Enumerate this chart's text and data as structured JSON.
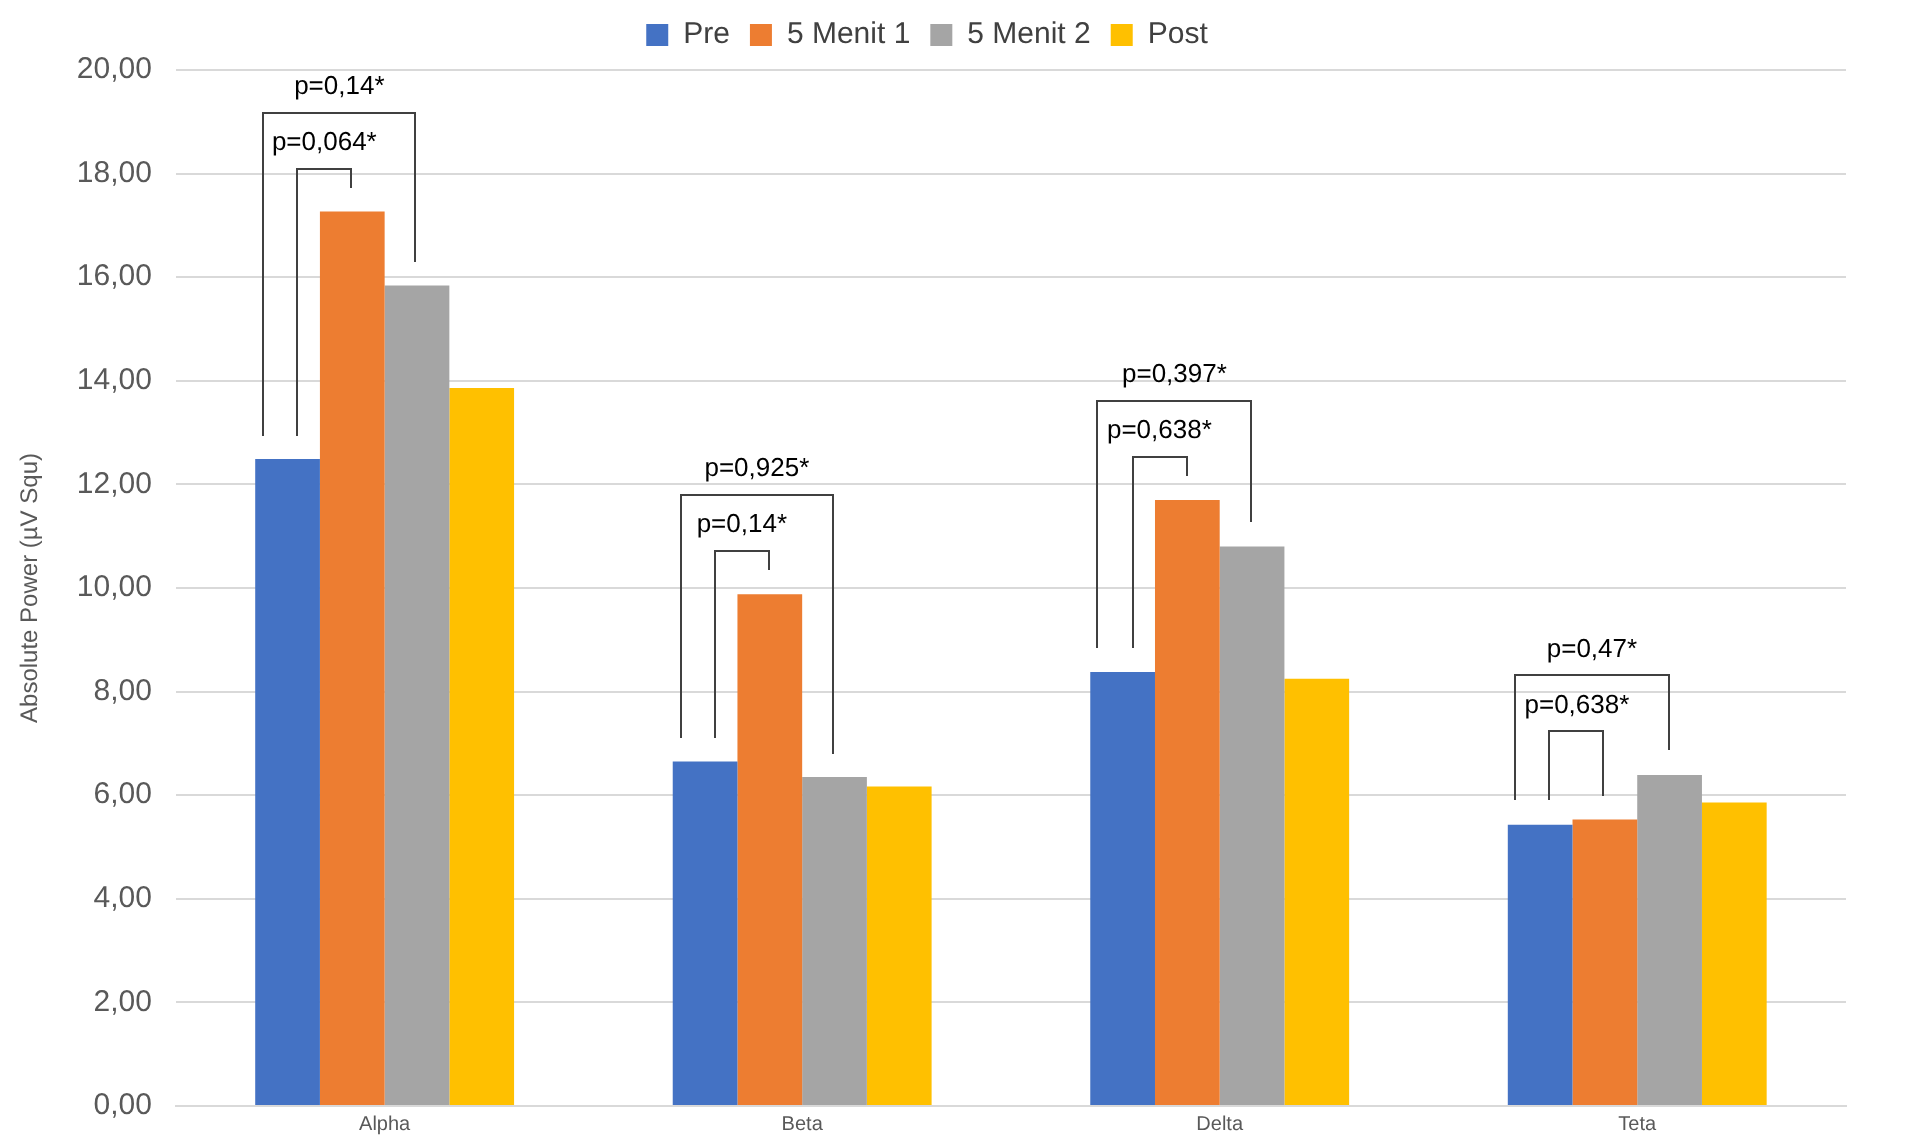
{
  "chart_data": {
    "type": "bar",
    "ylabel": "Absolute Power (µV Squ)",
    "categories": [
      "Alpha",
      "Beta",
      "Delta",
      "Teta"
    ],
    "series": [
      {
        "name": "Pre",
        "color": "#4472c4",
        "values": [
          12.49,
          6.65,
          8.38,
          5.43
        ]
      },
      {
        "name": "5 Menit 1",
        "color": "#ed7d31",
        "values": [
          17.27,
          9.88,
          11.7,
          5.53
        ]
      },
      {
        "name": "5 Menit 2",
        "color": "#a5a5a5",
        "values": [
          15.84,
          6.35,
          10.8,
          6.39
        ]
      },
      {
        "name": "Post",
        "color": "#ffc000",
        "values": [
          13.86,
          6.17,
          8.25,
          5.86
        ]
      }
    ],
    "ylim": [
      0,
      20
    ],
    "yticks": [
      {
        "value": 0,
        "label": "0,00"
      },
      {
        "value": 2,
        "label": "2,00"
      },
      {
        "value": 4,
        "label": "4,00"
      },
      {
        "value": 6,
        "label": "6,00"
      },
      {
        "value": 8,
        "label": "8,00"
      },
      {
        "value": 10,
        "label": "10,00"
      },
      {
        "value": 12,
        "label": "12,00"
      },
      {
        "value": 14,
        "label": "14,00"
      },
      {
        "value": 16,
        "label": "16,00"
      },
      {
        "value": 18,
        "label": "18,00"
      },
      {
        "value": 20,
        "label": "20,00"
      }
    ],
    "grid": "y",
    "legend": "top",
    "annotations": [
      "p=0,14*",
      "p=0,064*",
      "p=0,925*",
      "p=0,14*",
      "p=0,397*",
      "p=0,638*",
      "p=0,47*",
      "p=0,638*"
    ]
  }
}
